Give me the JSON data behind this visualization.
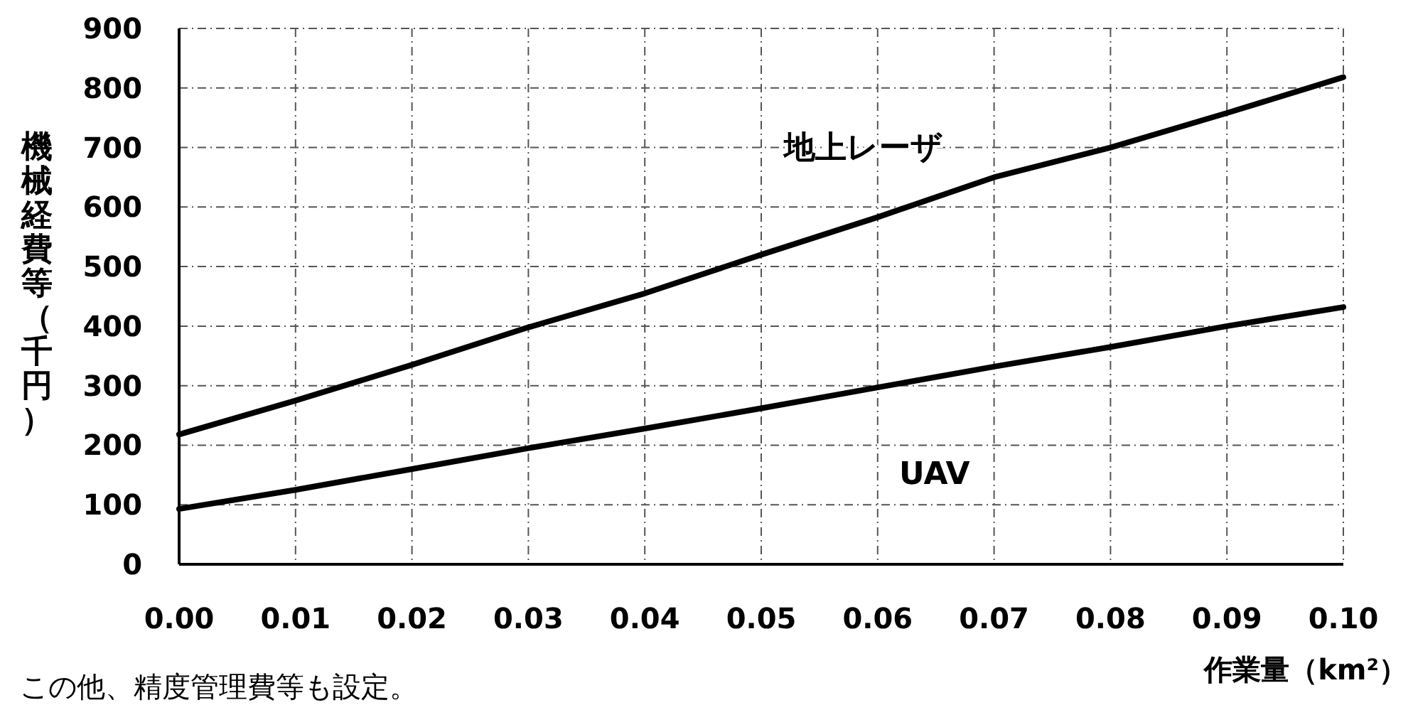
{
  "chart_data": {
    "type": "line",
    "xlabel": "作業量（km²）",
    "ylabel": "機械経費等（千円）",
    "annotations": [
      "この他、精度管理費等も設定。"
    ],
    "xlim": [
      0,
      0.1
    ],
    "xticks": [
      {
        "value": 0,
        "label": "0.00"
      },
      {
        "value": 0.01,
        "label": "0.01"
      },
      {
        "value": 0.02,
        "label": "0.02"
      },
      {
        "value": 0.03,
        "label": "0.03"
      },
      {
        "value": 0.04,
        "label": "0.04"
      },
      {
        "value": 0.05,
        "label": "0.05"
      },
      {
        "value": 0.06,
        "label": "0.06"
      },
      {
        "value": 0.07,
        "label": "0.07"
      },
      {
        "value": 0.08,
        "label": "0.08"
      },
      {
        "value": 0.09,
        "label": "0.09"
      },
      {
        "value": 0.1,
        "label": "0.10"
      }
    ],
    "ylim": [
      0,
      900
    ],
    "yticks": [
      0,
      100,
      200,
      300,
      400,
      500,
      600,
      700,
      800,
      900
    ],
    "x": [
      0,
      0.01,
      0.02,
      0.03,
      0.04,
      0.05,
      0.06,
      0.07,
      0.08,
      0.09,
      0.1
    ],
    "series": [
      {
        "name": "地上レーザ",
        "color": "#000000",
        "values": [
          218,
          275,
          335,
          398,
          455,
          520,
          583,
          650,
          700,
          758,
          818
        ]
      },
      {
        "name": "UAV",
        "color": "#000000",
        "values": [
          93,
          125,
          160,
          195,
          228,
          262,
          297,
          332,
          365,
          400,
          432
        ]
      }
    ],
    "grid": true,
    "marker": "none",
    "line_style": "solid"
  }
}
